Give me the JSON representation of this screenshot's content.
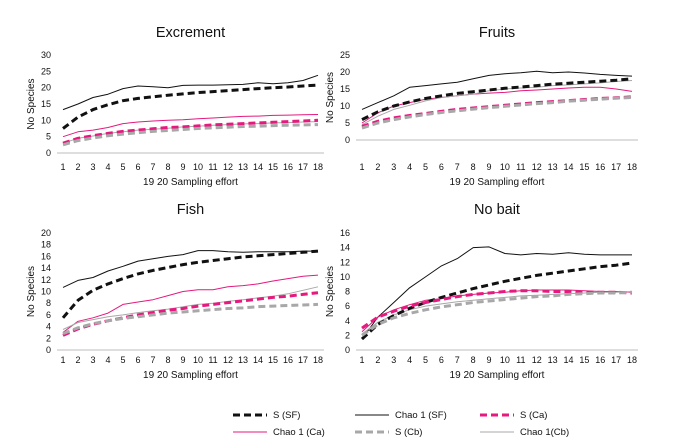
{
  "chart_data": [
    {
      "type": "line",
      "title": "Excrement",
      "xlabel": "19 20 Sampling effort",
      "ylabel": "No Species",
      "ylim": [
        0,
        30
      ],
      "yticks": [
        0,
        5,
        10,
        15,
        20,
        25,
        30
      ],
      "x": [
        1,
        2,
        3,
        4,
        5,
        6,
        7,
        8,
        9,
        10,
        11,
        12,
        13,
        14,
        15,
        16,
        17,
        18
      ],
      "series": [
        {
          "name": "S (SF)",
          "values": [
            7.5,
            11,
            13.3,
            14.8,
            16,
            16.7,
            17.2,
            17.7,
            18.1,
            18.5,
            18.8,
            19.1,
            19.4,
            19.7,
            20,
            20.2,
            20.5,
            20.8
          ]
        },
        {
          "name": "Chao 1 (SF)",
          "values": [
            13.3,
            15,
            17,
            18,
            19.7,
            20.5,
            20.3,
            20,
            20.7,
            20.8,
            20.8,
            20.9,
            21,
            21.5,
            21.2,
            21.5,
            22.2,
            23.8
          ]
        },
        {
          "name": "S (Ca)",
          "values": [
            3,
            4.5,
            5.3,
            6,
            6.6,
            7,
            7.4,
            7.8,
            8,
            8.3,
            8.6,
            8.8,
            9,
            9.2,
            9.4,
            9.6,
            9.8,
            10
          ]
        },
        {
          "name": "Chao 1 (Ca)",
          "values": [
            5,
            6.5,
            7,
            7.8,
            9,
            9.5,
            9.8,
            10,
            10.2,
            10.5,
            10.7,
            11,
            11.2,
            11.3,
            11.5,
            11.6,
            11.7,
            11.8
          ]
        },
        {
          "name": "S (Cb)",
          "values": [
            2.5,
            3.8,
            4.6,
            5.3,
            5.8,
            6.2,
            6.6,
            6.9,
            7.2,
            7.5,
            7.7,
            7.9,
            8.1,
            8.2,
            8.4,
            8.5,
            8.6,
            8.7
          ]
        },
        {
          "name": "Chao 1(Cb)",
          "values": [
            3,
            4.5,
            5.2,
            6,
            6.5,
            7,
            7.3,
            7.6,
            8,
            8.2,
            8.5,
            8.7,
            8.9,
            9,
            9.2,
            9.3,
            9.5,
            9.6
          ]
        }
      ]
    },
    {
      "type": "line",
      "title": "Fruits",
      "xlabel": "19 20 Sampling effort",
      "ylabel": "No Species",
      "ylim": [
        0,
        25
      ],
      "yticks": [
        0,
        5,
        10,
        15,
        20,
        25
      ],
      "x": [
        1,
        2,
        3,
        4,
        5,
        6,
        7,
        8,
        9,
        10,
        11,
        12,
        13,
        14,
        15,
        16,
        17,
        18
      ],
      "series": [
        {
          "name": "S (SF)",
          "values": [
            6,
            8.3,
            10,
            11.2,
            12.2,
            13,
            13.7,
            14.2,
            14.7,
            15.2,
            15.6,
            16,
            16.4,
            16.7,
            17,
            17.3,
            17.6,
            18
          ]
        },
        {
          "name": "Chao 1 (SF)",
          "values": [
            9,
            11,
            13,
            15.5,
            16,
            16.5,
            17,
            18,
            19,
            19.5,
            19.8,
            20.2,
            19.8,
            20,
            19.7,
            19.3,
            19,
            18.8
          ]
        },
        {
          "name": "S (Ca)",
          "values": [
            4,
            5.5,
            6.5,
            7.2,
            7.8,
            8.4,
            9,
            9.4,
            9.8,
            10.2,
            10.6,
            11,
            11.3,
            11.6,
            11.9,
            12.2,
            12.4,
            12.7
          ]
        },
        {
          "name": "Chao 1 (Ca)",
          "values": [
            5,
            8,
            10,
            11,
            12,
            12.5,
            13,
            13.5,
            13.8,
            14,
            14.5,
            14.7,
            15,
            15.3,
            15.5,
            15.5,
            15,
            14.3
          ]
        },
        {
          "name": "S (Cb)",
          "values": [
            3.5,
            5,
            6,
            6.8,
            7.5,
            8.1,
            8.6,
            9.1,
            9.5,
            9.9,
            10.3,
            10.7,
            11,
            11.4,
            11.7,
            12,
            12.3,
            12.5
          ]
        },
        {
          "name": "Chao 1(Cb)",
          "values": [
            4.5,
            7,
            9,
            10.2,
            11.5,
            12.5,
            13,
            13.5,
            14.5,
            15,
            15.3,
            15.5,
            16,
            16.2,
            16.5,
            16.8,
            17.2,
            17.5
          ]
        }
      ]
    },
    {
      "type": "line",
      "title": "Fish",
      "xlabel": "19 20 Sampling effort",
      "ylabel": "No Species",
      "ylim": [
        0,
        20
      ],
      "yticks": [
        0,
        2,
        4,
        6,
        8,
        10,
        12,
        14,
        16,
        18,
        20
      ],
      "x": [
        1,
        2,
        3,
        4,
        5,
        6,
        7,
        8,
        9,
        10,
        11,
        12,
        13,
        14,
        15,
        16,
        17,
        18
      ],
      "series": [
        {
          "name": "S (SF)",
          "values": [
            5.5,
            8.5,
            10.2,
            11.3,
            12.2,
            13,
            13.6,
            14.1,
            14.6,
            15,
            15.3,
            15.6,
            15.9,
            16.1,
            16.3,
            16.5,
            16.7,
            16.9
          ]
        },
        {
          "name": "Chao 1 (SF)",
          "values": [
            10.7,
            11.9,
            12.4,
            13.5,
            14.3,
            15.2,
            15.6,
            16,
            16.3,
            17,
            17,
            16.8,
            16.7,
            16.8,
            16.8,
            16.8,
            16.9,
            16.9
          ]
        },
        {
          "name": "S (Ca)",
          "values": [
            2.5,
            3.6,
            4.4,
            5,
            5.5,
            6,
            6.4,
            6.8,
            7.1,
            7.5,
            7.8,
            8.1,
            8.4,
            8.7,
            9,
            9.2,
            9.5,
            9.8
          ]
        },
        {
          "name": "Chao 1 (Ca)",
          "values": [
            3,
            4.9,
            5.5,
            6.3,
            7.8,
            8.2,
            8.6,
            9.3,
            10,
            10.3,
            10.3,
            10.8,
            11,
            11.3,
            11.8,
            12.2,
            12.6,
            12.8
          ]
        },
        {
          "name": "S (Cb)",
          "values": [
            2.8,
            3.8,
            4.5,
            5,
            5.4,
            5.7,
            6,
            6.3,
            6.5,
            6.7,
            6.9,
            7.1,
            7.2,
            7.4,
            7.5,
            7.6,
            7.7,
            7.8
          ]
        },
        {
          "name": "Chao 1(Cb)",
          "values": [
            3.5,
            4.7,
            5.2,
            5.7,
            6,
            6.4,
            6.7,
            7,
            7.4,
            7.8,
            8,
            8.3,
            8.6,
            8.9,
            9.2,
            9.6,
            10.2,
            10.8
          ]
        }
      ]
    },
    {
      "type": "line",
      "title": "No bait",
      "xlabel": "19 20 Sampling effort",
      "ylabel": "No Species",
      "ylim": [
        0,
        16
      ],
      "yticks": [
        0,
        2,
        4,
        6,
        8,
        10,
        12,
        14,
        16
      ],
      "x": [
        1,
        2,
        3,
        4,
        5,
        6,
        7,
        8,
        9,
        10,
        11,
        12,
        13,
        14,
        15,
        16,
        17,
        18
      ],
      "series": [
        {
          "name": "S (SF)",
          "values": [
            1.5,
            3.5,
            4.7,
            5.7,
            6.5,
            7.2,
            7.8,
            8.4,
            8.9,
            9.4,
            9.8,
            10.2,
            10.5,
            10.8,
            11.1,
            11.4,
            11.6,
            11.9
          ]
        },
        {
          "name": "Chao 1 (SF)",
          "values": [
            1.5,
            4.5,
            6.5,
            8.5,
            10,
            11.5,
            12.5,
            14,
            14.1,
            13.2,
            13,
            13.2,
            13.1,
            13.3,
            13.1,
            13,
            13,
            13
          ]
        },
        {
          "name": "S (Ca)",
          "values": [
            3,
            4.5,
            5.3,
            6,
            6.5,
            6.9,
            7.3,
            7.6,
            7.8,
            8,
            8.1,
            8.1,
            8,
            8,
            7.9,
            7.9,
            7.9,
            7.8
          ]
        },
        {
          "name": "Chao 1 (Ca)",
          "values": [
            2.5,
            4.5,
            5.5,
            6.2,
            6.8,
            7,
            7.4,
            7.6,
            7.8,
            7.9,
            8.1,
            8.2,
            8.2,
            8.2,
            8.1,
            8,
            8,
            7.9
          ]
        },
        {
          "name": "S (Cb)",
          "values": [
            2,
            3.5,
            4.4,
            5,
            5.5,
            5.9,
            6.2,
            6.5,
            6.7,
            6.9,
            7.1,
            7.3,
            7.4,
            7.6,
            7.7,
            7.8,
            7.8,
            7.9
          ]
        },
        {
          "name": "Chao 1(Cb)",
          "values": [
            2.2,
            3.8,
            4.8,
            5.5,
            6,
            6.3,
            6.6,
            6.8,
            7,
            7.2,
            7.4,
            7.5,
            7.6,
            7.7,
            7.8,
            7.9,
            7.9,
            8
          ]
        }
      ]
    }
  ],
  "legend": {
    "placement": "bottom",
    "items": [
      {
        "label": "S (SF)",
        "color": "#111111",
        "style": "dashed-thick"
      },
      {
        "label": "Chao 1 (SF)",
        "color": "#111111",
        "style": "solid"
      },
      {
        "label": "S (Ca)",
        "color": "#e5197e",
        "style": "dashed-thick"
      },
      {
        "label": "Chao 1 (Ca)",
        "color": "#e5197e",
        "style": "solid"
      },
      {
        "label": "S (Cb)",
        "color": "#a8a8a8",
        "style": "dashed-thick"
      },
      {
        "label": "Chao 1(Cb)",
        "color": "#a8a8a8",
        "style": "solid"
      }
    ]
  }
}
